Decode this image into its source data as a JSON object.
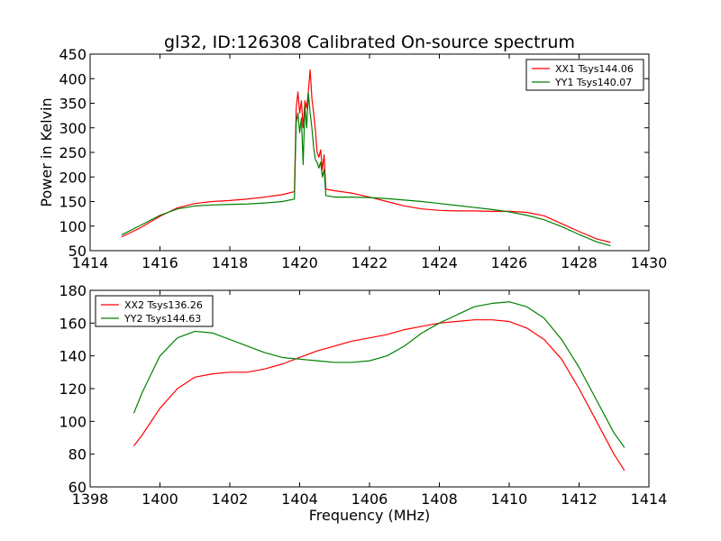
{
  "figure": {
    "title": "gl32, ID:126308 Calibrated On-source spectrum"
  },
  "colors": {
    "red": "#ff0000",
    "green": "#008000"
  },
  "chart_data": [
    {
      "type": "line",
      "title": "gl32, ID:126308 Calibrated On-source spectrum",
      "xlabel": "",
      "ylabel": "Power in Kelvin",
      "xlim": [
        1414,
        1430
      ],
      "ylim": [
        50,
        450
      ],
      "xticks": [
        1414,
        1416,
        1418,
        1420,
        1422,
        1424,
        1426,
        1428,
        1430
      ],
      "yticks": [
        50,
        100,
        150,
        200,
        250,
        300,
        350,
        400,
        450
      ],
      "grid": false,
      "legend": "top-right",
      "series": [
        {
          "name": "XX1 Tsys144.06",
          "color": "#ff0000",
          "x": [
            1414.9,
            1415.4,
            1416.0,
            1416.5,
            1417.0,
            1417.5,
            1418.0,
            1418.5,
            1419.0,
            1419.5,
            1419.85,
            1419.9,
            1419.95,
            1420.0,
            1420.05,
            1420.1,
            1420.15,
            1420.2,
            1420.25,
            1420.3,
            1420.35,
            1420.4,
            1420.45,
            1420.5,
            1420.55,
            1420.6,
            1420.65,
            1420.7,
            1420.75,
            1421.0,
            1421.5,
            1422.0,
            1422.5,
            1423.0,
            1423.5,
            1424.0,
            1424.5,
            1425.0,
            1425.5,
            1426.0,
            1426.5,
            1427.0,
            1427.5,
            1428.0,
            1428.5,
            1428.9
          ],
          "y": [
            78,
            95,
            120,
            137,
            146,
            150,
            152,
            155,
            159,
            164,
            170,
            340,
            373,
            330,
            355,
            300,
            355,
            340,
            375,
            418,
            360,
            330,
            295,
            250,
            240,
            255,
            215,
            245,
            175,
            172,
            167,
            159,
            150,
            141,
            135,
            132,
            131,
            131,
            130,
            130,
            128,
            121,
            105,
            89,
            74,
            67
          ]
        },
        {
          "name": "YY1 Tsys140.07",
          "color": "#008000",
          "x": [
            1414.9,
            1415.4,
            1416.0,
            1416.5,
            1417.0,
            1417.5,
            1418.0,
            1418.5,
            1419.0,
            1419.5,
            1419.85,
            1419.9,
            1419.95,
            1420.0,
            1420.05,
            1420.1,
            1420.15,
            1420.2,
            1420.25,
            1420.3,
            1420.35,
            1420.4,
            1420.45,
            1420.5,
            1420.55,
            1420.6,
            1420.65,
            1420.7,
            1420.75,
            1421.0,
            1421.5,
            1422.0,
            1422.5,
            1423.0,
            1423.5,
            1424.0,
            1424.5,
            1425.0,
            1425.5,
            1426.0,
            1426.5,
            1427.0,
            1427.5,
            1428.0,
            1428.5,
            1428.9
          ],
          "y": [
            82,
            100,
            122,
            135,
            141,
            143,
            144,
            145,
            147,
            150,
            155,
            310,
            330,
            290,
            320,
            225,
            345,
            300,
            370,
            330,
            300,
            260,
            235,
            230,
            218,
            230,
            200,
            215,
            162,
            159,
            159,
            158,
            156,
            153,
            150,
            146,
            142,
            138,
            134,
            129,
            122,
            113,
            99,
            83,
            68,
            60
          ]
        }
      ]
    },
    {
      "type": "line",
      "title": "",
      "xlabel": "Frequency (MHz)",
      "ylabel": "",
      "xlim": [
        1398,
        1414
      ],
      "ylim": [
        60,
        180
      ],
      "xticks": [
        1398,
        1400,
        1402,
        1404,
        1406,
        1408,
        1410,
        1412,
        1414
      ],
      "yticks": [
        60,
        80,
        100,
        120,
        140,
        160,
        180
      ],
      "grid": false,
      "legend": "top-left",
      "series": [
        {
          "name": "XX2 Tsys136.26",
          "color": "#ff0000",
          "x": [
            1399.25,
            1399.5,
            1400.0,
            1400.5,
            1401.0,
            1401.5,
            1402.0,
            1402.5,
            1403.0,
            1403.5,
            1404.0,
            1404.5,
            1405.0,
            1405.5,
            1406.0,
            1406.5,
            1407.0,
            1407.5,
            1408.0,
            1408.5,
            1409.0,
            1409.5,
            1410.0,
            1410.5,
            1411.0,
            1411.5,
            1412.0,
            1412.5,
            1413.0,
            1413.3
          ],
          "y": [
            85,
            92,
            108,
            120,
            127,
            129,
            130,
            130,
            132,
            135,
            139,
            143,
            146,
            149,
            151,
            153,
            156,
            158,
            160,
            161,
            162,
            162,
            161,
            157,
            150,
            138,
            120,
            100,
            80,
            70
          ]
        },
        {
          "name": "YY2 Tsys144.63",
          "color": "#008000",
          "x": [
            1399.25,
            1399.5,
            1400.0,
            1400.5,
            1401.0,
            1401.5,
            1402.0,
            1402.5,
            1403.0,
            1403.5,
            1404.0,
            1404.5,
            1405.0,
            1405.5,
            1406.0,
            1406.5,
            1407.0,
            1407.5,
            1408.0,
            1408.5,
            1409.0,
            1409.5,
            1410.0,
            1410.5,
            1411.0,
            1411.5,
            1412.0,
            1412.5,
            1413.0,
            1413.3
          ],
          "y": [
            105,
            118,
            140,
            151,
            155,
            154,
            150,
            146,
            142,
            139,
            138,
            137,
            136,
            136,
            137,
            140,
            146,
            154,
            160,
            165,
            170,
            172,
            173,
            170,
            163,
            150,
            133,
            113,
            93,
            84
          ]
        }
      ]
    }
  ]
}
